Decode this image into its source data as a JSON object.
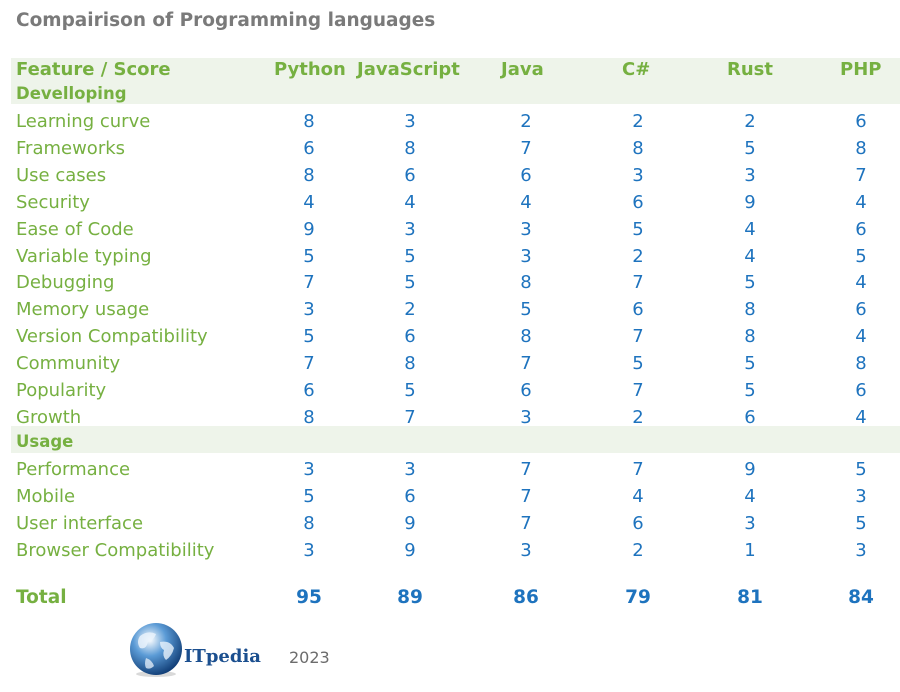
{
  "title": "Compairison of Programming languages",
  "header": {
    "feature_label": "Feature / Score",
    "languages": [
      "Python",
      "JavaScript",
      "Java",
      "C#",
      "Rust",
      "PHP"
    ]
  },
  "sections": [
    {
      "name": "Develloping",
      "rows": [
        {
          "label": "Learning curve",
          "values": [
            8,
            3,
            2,
            2,
            2,
            6
          ]
        },
        {
          "label": "Frameworks",
          "values": [
            6,
            8,
            7,
            8,
            5,
            8
          ]
        },
        {
          "label": "Use cases",
          "values": [
            8,
            6,
            6,
            3,
            3,
            7
          ]
        },
        {
          "label": "Security",
          "values": [
            4,
            4,
            4,
            6,
            9,
            4
          ]
        },
        {
          "label": "Ease of Code",
          "values": [
            9,
            3,
            3,
            5,
            4,
            6
          ]
        },
        {
          "label": "Variable typing",
          "values": [
            5,
            5,
            3,
            2,
            4,
            5
          ]
        },
        {
          "label": "Debugging",
          "values": [
            7,
            5,
            8,
            7,
            5,
            4
          ]
        },
        {
          "label": "Memory usage",
          "values": [
            3,
            2,
            5,
            6,
            8,
            6
          ]
        },
        {
          "label": "Version Compatibility",
          "values": [
            5,
            6,
            8,
            7,
            8,
            4
          ]
        },
        {
          "label": "Community",
          "values": [
            7,
            8,
            7,
            5,
            5,
            8
          ]
        },
        {
          "label": "Popularity",
          "values": [
            6,
            5,
            6,
            7,
            5,
            6
          ]
        },
        {
          "label": "Growth",
          "values": [
            8,
            7,
            3,
            2,
            6,
            4
          ]
        }
      ]
    },
    {
      "name": "Usage",
      "rows": [
        {
          "label": "Performance",
          "values": [
            3,
            3,
            7,
            7,
            9,
            5
          ]
        },
        {
          "label": "Mobile",
          "values": [
            5,
            6,
            7,
            4,
            4,
            3
          ]
        },
        {
          "label": "User interface",
          "values": [
            8,
            9,
            7,
            6,
            3,
            5
          ]
        },
        {
          "label": "Browser Compatibility",
          "values": [
            3,
            9,
            3,
            2,
            1,
            3
          ]
        }
      ]
    }
  ],
  "total": {
    "label": "Total",
    "values": [
      95,
      89,
      86,
      79,
      81,
      84
    ]
  },
  "footer": {
    "brand": "ITpedia",
    "year": "2023",
    "logo_icon": "globe-icon"
  },
  "colors": {
    "label_green": "#76b041",
    "value_blue": "#1e73be",
    "band_bg": "#eef4ea",
    "title_gray": "#7a7a7a"
  }
}
